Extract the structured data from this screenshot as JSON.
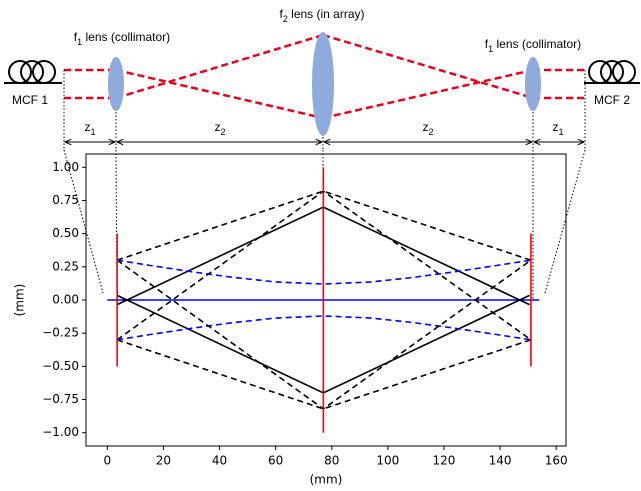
{
  "schematic": {
    "lens_labels": [
      {
        "text": "f",
        "sub": "1",
        "rest": " lens (collimator)"
      },
      {
        "text": "f",
        "sub": "2",
        "rest": " lens (in array)"
      },
      {
        "text": "f",
        "sub": "1",
        "rest": " lens (collimator)"
      }
    ],
    "fibers": [
      "MCF 1",
      "MCF 2"
    ],
    "distances": [
      {
        "text": "z",
        "sub": "1"
      },
      {
        "text": "z",
        "sub": "2"
      },
      {
        "text": "z",
        "sub": "2"
      },
      {
        "text": "z",
        "sub": "1"
      }
    ]
  },
  "chart_data": {
    "type": "line",
    "xlabel": "(mm)",
    "ylabel": "(mm)",
    "xlim": [
      -7.6,
      163.5
    ],
    "ylim": [
      -1.1,
      1.1
    ],
    "xticks": [
      0,
      20,
      40,
      60,
      80,
      100,
      120,
      140,
      160
    ],
    "yticks": [
      {
        "value": 1,
        "label": "1.00"
      },
      {
        "value": 0.75,
        "label": "0.75"
      },
      {
        "value": 0.5,
        "label": "0.50"
      },
      {
        "value": 0.25,
        "label": "0.25"
      },
      {
        "value": 0,
        "label": "0.00"
      },
      {
        "value": -0.25,
        "label": "−0.25"
      },
      {
        "value": -0.5,
        "label": "−0.50"
      },
      {
        "value": -0.75,
        "label": "−0.75"
      },
      {
        "value": -1,
        "label": "−1.00"
      }
    ],
    "series": [
      {
        "color": "#0000ff",
        "style": "solid",
        "x": [
          0,
          154
        ],
        "values": [
          0,
          0
        ]
      },
      {
        "color": "#000000",
        "style": "solid",
        "x": [
          3.5,
          77,
          150.5
        ],
        "values": [
          -0.035,
          0.7,
          -0.035
        ]
      },
      {
        "color": "#000000",
        "style": "solid",
        "x": [
          3.5,
          77,
          150.5
        ],
        "values": [
          0.035,
          -0.7,
          0.035
        ]
      },
      {
        "color": "#000000",
        "style": "dashed",
        "x": [
          3.5,
          77,
          151
        ],
        "values": [
          0.3,
          0.82,
          0.3
        ]
      },
      {
        "color": "#000000",
        "style": "dashed",
        "x": [
          3.5,
          77,
          151
        ],
        "values": [
          -0.3,
          -0.82,
          -0.3
        ]
      },
      {
        "color": "#000000",
        "style": "dashed",
        "x": [
          3.5,
          77,
          151
        ],
        "values": [
          0.3,
          -0.82,
          0.3
        ]
      },
      {
        "color": "#000000",
        "style": "dashed",
        "x": [
          3.5,
          77,
          151
        ],
        "values": [
          -0.3,
          0.82,
          -0.3
        ]
      },
      {
        "color": "#0000ff",
        "style": "dashed",
        "x": [
          3.5,
          15,
          30,
          45,
          60,
          77,
          94,
          109,
          124,
          139,
          151
        ],
        "values": [
          0.3,
          0.261,
          0.213,
          0.17,
          0.136,
          0.12,
          0.136,
          0.17,
          0.213,
          0.261,
          0.3
        ]
      },
      {
        "color": "#0000ff",
        "style": "dashed",
        "x": [
          3.5,
          15,
          30,
          45,
          60,
          77,
          94,
          109,
          124,
          139,
          151
        ],
        "values": [
          -0.3,
          -0.261,
          -0.213,
          -0.17,
          -0.136,
          -0.12,
          -0.136,
          -0.17,
          -0.213,
          -0.261,
          -0.3
        ]
      },
      {
        "color": "#ff0000",
        "style": "solid",
        "x": [
          3.5,
          3.5
        ],
        "values": [
          -0.5,
          0.5
        ]
      },
      {
        "color": "#ff0000",
        "style": "solid",
        "x": [
          77,
          77
        ],
        "values": [
          -1,
          1
        ]
      },
      {
        "color": "#ff0000",
        "style": "solid",
        "x": [
          151,
          151
        ],
        "values": [
          -0.5,
          0.5
        ]
      }
    ]
  }
}
